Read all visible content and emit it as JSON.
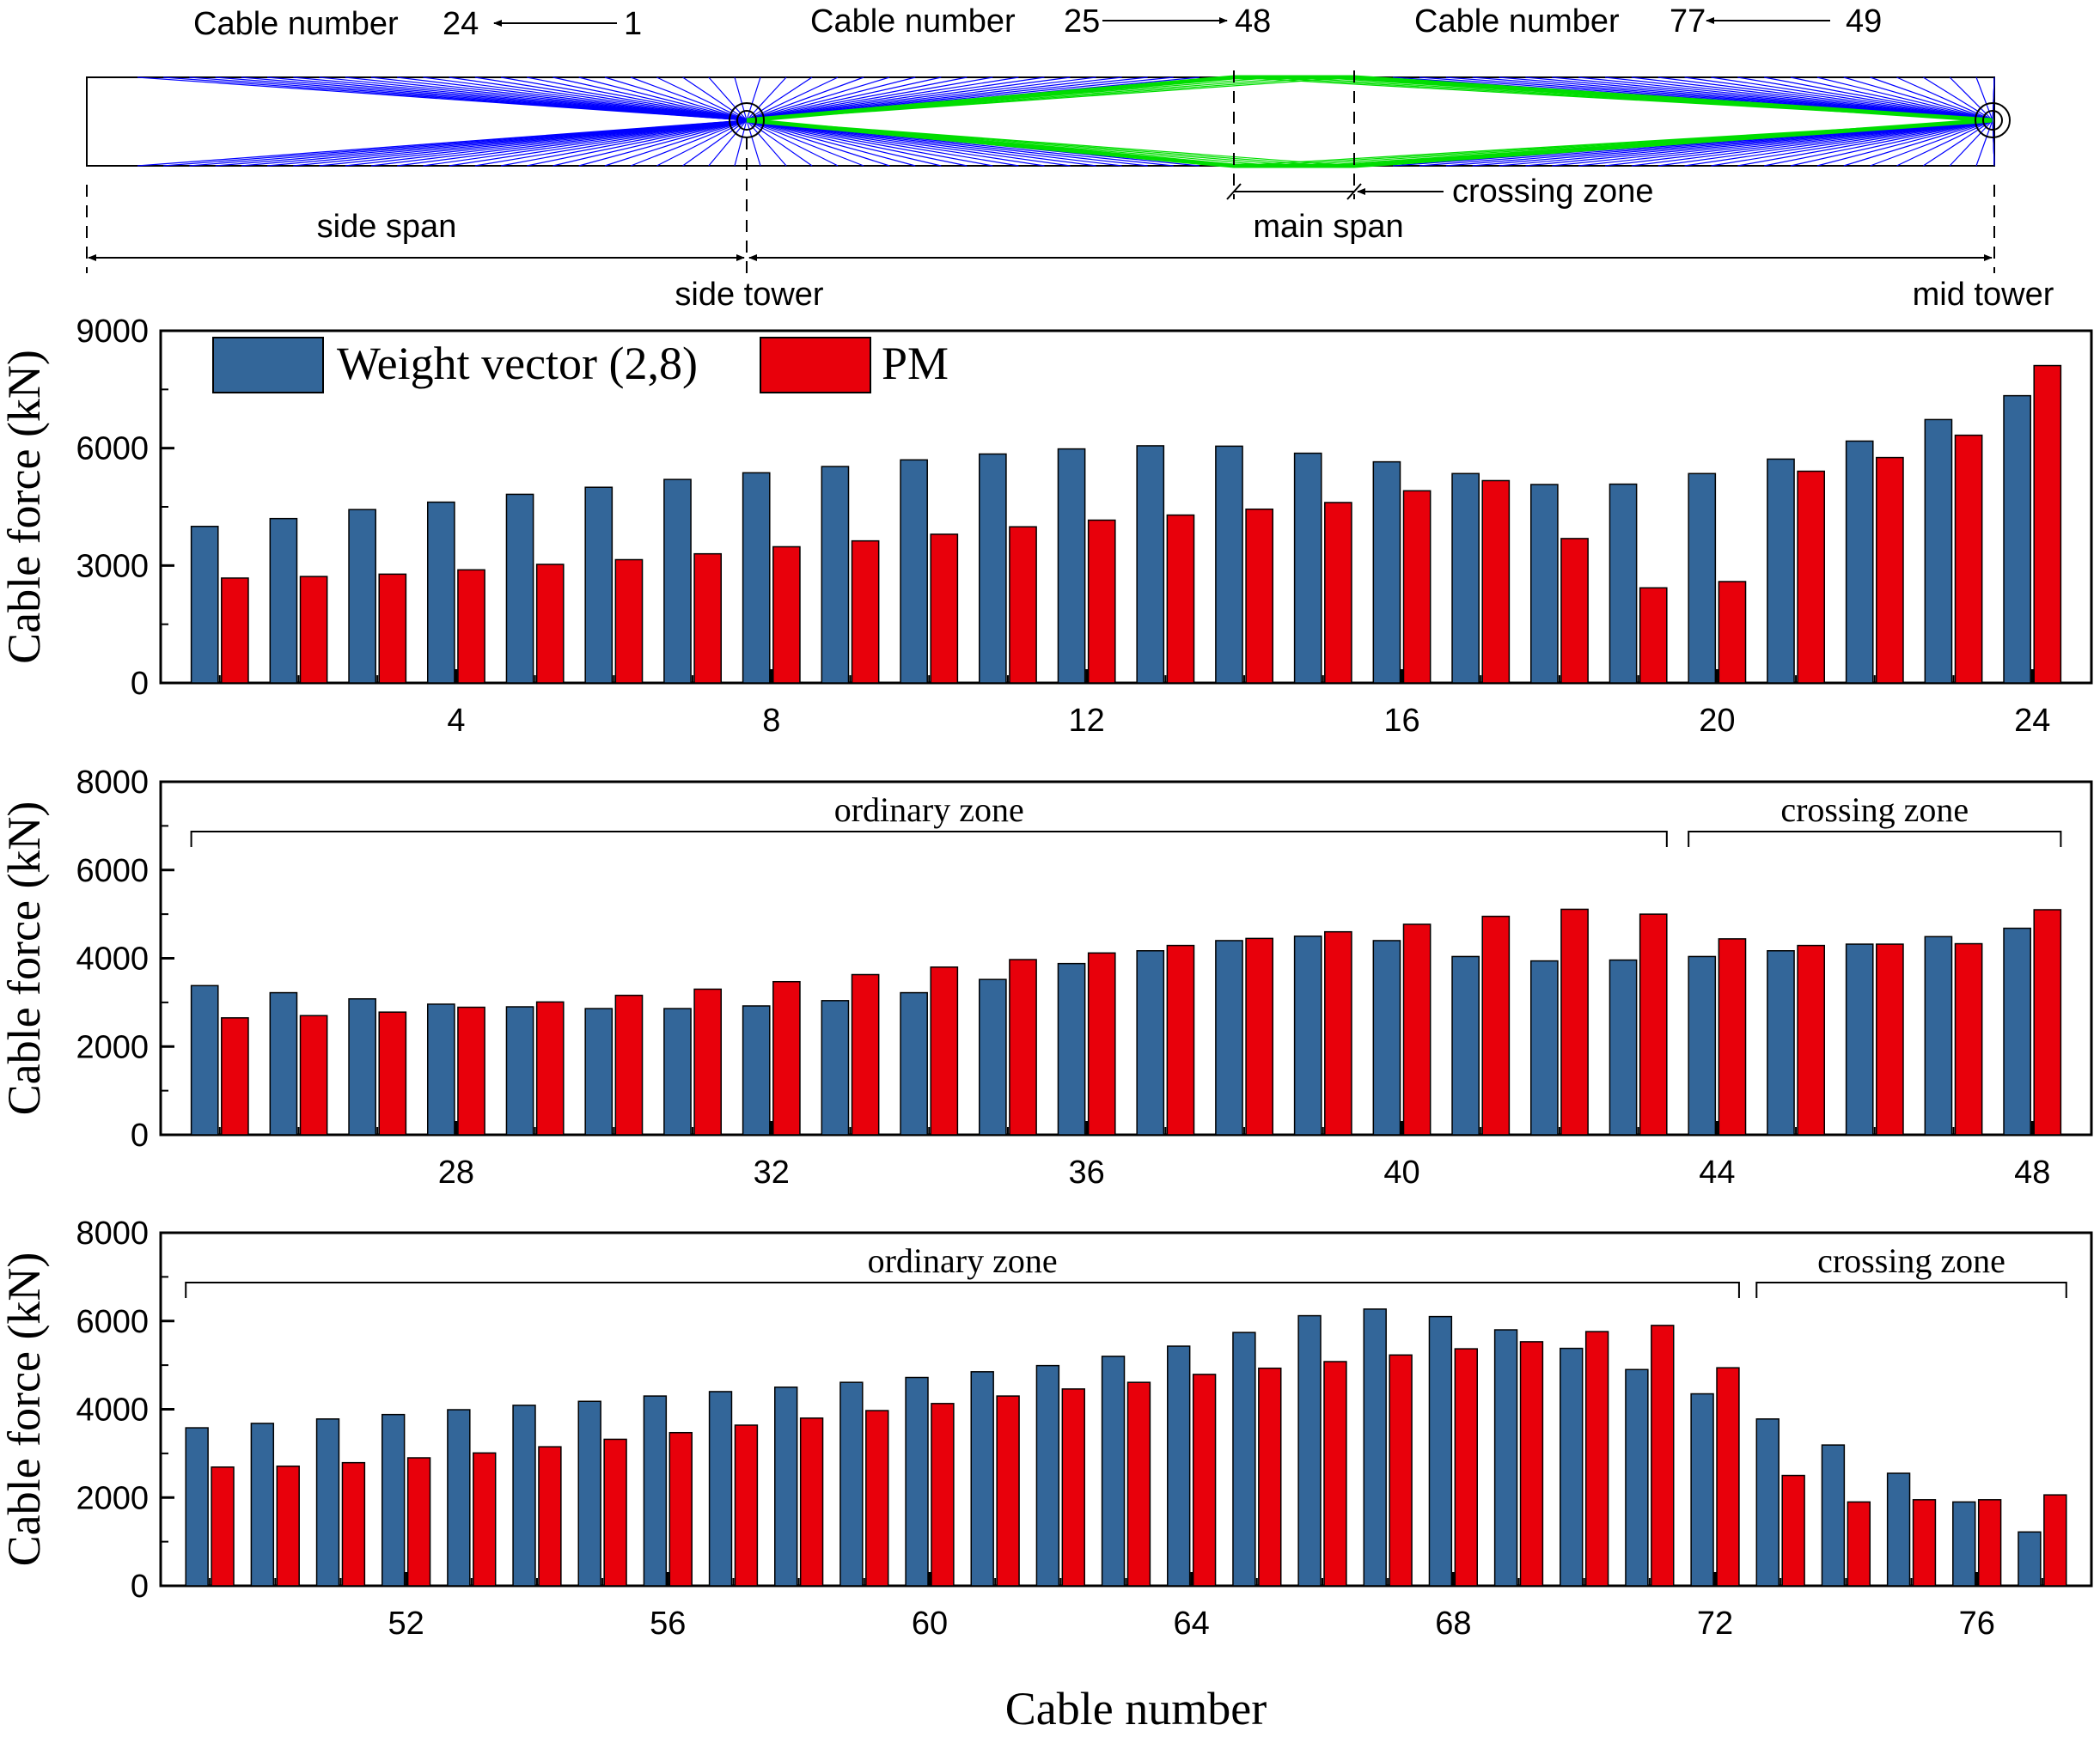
{
  "colors": {
    "weight": "#336699",
    "pm": "#e8000b",
    "cable_blue": "#0000ff",
    "cable_green": "#00dd00",
    "axis": "#000000"
  },
  "diagram": {
    "label_group_1": "Cable number",
    "label_group_1_start": "24",
    "label_group_1_end": "1",
    "label_group_2": "Cable number",
    "label_group_2_start": "25",
    "label_group_2_end": "48",
    "label_group_3": "Cable number",
    "label_group_3_start": "77",
    "label_group_3_end": "49",
    "side_span": "side span",
    "main_span": "main span",
    "crossing_zone": "crossing zone",
    "side_tower": "side tower",
    "mid_tower": "mid tower"
  },
  "legend": {
    "weight_label": "Weight vector (2,8)",
    "pm_label": "PM"
  },
  "xlabel": "Cable number",
  "chart_data": [
    {
      "type": "bar",
      "ylabel": "Cable force (kN)",
      "ylim": [
        0,
        9000
      ],
      "yticks": [
        0,
        3000,
        6000,
        9000
      ],
      "categories": [
        1,
        2,
        3,
        4,
        5,
        6,
        7,
        8,
        9,
        10,
        11,
        12,
        13,
        14,
        15,
        16,
        17,
        18,
        19,
        20,
        21,
        22,
        23,
        24
      ],
      "xticks": [
        4,
        8,
        12,
        16,
        20,
        24
      ],
      "series": [
        {
          "name": "Weight vector (2,8)",
          "values": [
            4000,
            4200,
            4430,
            4620,
            4820,
            5000,
            5200,
            5370,
            5530,
            5700,
            5850,
            5980,
            6060,
            6050,
            5870,
            5650,
            5350,
            5070,
            5080,
            5350,
            5720,
            6180,
            6730,
            7340
          ]
        },
        {
          "name": "PM",
          "values": [
            2680,
            2720,
            2780,
            2890,
            3030,
            3150,
            3300,
            3480,
            3630,
            3800,
            3990,
            4160,
            4290,
            4440,
            4610,
            4910,
            5170,
            3690,
            2430,
            2590,
            5410,
            5760,
            6330,
            8110
          ]
        }
      ],
      "zones": []
    },
    {
      "type": "bar",
      "ylabel": "Cable force (kN)",
      "ylim": [
        0,
        8000
      ],
      "yticks": [
        0,
        2000,
        4000,
        6000,
        8000
      ],
      "categories": [
        25,
        26,
        27,
        28,
        29,
        30,
        31,
        32,
        33,
        34,
        35,
        36,
        37,
        38,
        39,
        40,
        41,
        42,
        43,
        44,
        45,
        46,
        47,
        48
      ],
      "xticks": [
        28,
        32,
        36,
        40,
        44,
        48
      ],
      "series": [
        {
          "name": "Weight vector (2,8)",
          "values": [
            3380,
            3220,
            3080,
            2960,
            2900,
            2860,
            2860,
            2920,
            3040,
            3220,
            3520,
            3880,
            4170,
            4400,
            4500,
            4400,
            4040,
            3940,
            3960,
            4040,
            4170,
            4320,
            4490,
            4680
          ]
        },
        {
          "name": "PM",
          "values": [
            2650,
            2700,
            2780,
            2890,
            3010,
            3160,
            3300,
            3470,
            3630,
            3800,
            3970,
            4120,
            4290,
            4450,
            4600,
            4770,
            4950,
            5110,
            5000,
            4440,
            4290,
            4320,
            4330,
            5100
          ]
        }
      ],
      "zones": [
        {
          "label": "ordinary zone",
          "from": 25,
          "to": 43
        },
        {
          "label": "crossing zone",
          "from": 44,
          "to": 48
        }
      ]
    },
    {
      "type": "bar",
      "ylabel": "Cable force (kN)",
      "ylim": [
        0,
        8000
      ],
      "yticks": [
        0,
        2000,
        4000,
        6000,
        8000
      ],
      "categories": [
        49,
        50,
        51,
        52,
        53,
        54,
        55,
        56,
        57,
        58,
        59,
        60,
        61,
        62,
        63,
        64,
        65,
        66,
        67,
        68,
        69,
        70,
        71,
        72,
        73,
        74,
        75,
        76,
        77
      ],
      "xticks": [
        52,
        56,
        60,
        64,
        68,
        72,
        76
      ],
      "series": [
        {
          "name": "Weight vector (2,8)",
          "values": [
            3580,
            3680,
            3780,
            3880,
            3990,
            4090,
            4180,
            4300,
            4400,
            4500,
            4610,
            4720,
            4850,
            4990,
            5200,
            5430,
            5740,
            6120,
            6270,
            6100,
            5800,
            5380,
            4900,
            4350,
            3780,
            3190,
            2550,
            1900,
            1220
          ]
        },
        {
          "name": "PM",
          "values": [
            2690,
            2710,
            2790,
            2900,
            3010,
            3150,
            3320,
            3470,
            3640,
            3800,
            3970,
            4130,
            4300,
            4460,
            4610,
            4790,
            4930,
            5080,
            5230,
            5370,
            5530,
            5760,
            5900,
            4940,
            2500,
            1900,
            1950,
            1950,
            2060
          ]
        }
      ],
      "zones": [
        {
          "label": "ordinary zone",
          "from": 49,
          "to": 72
        },
        {
          "label": "crossing zone",
          "from": 73,
          "to": 77
        }
      ]
    }
  ]
}
